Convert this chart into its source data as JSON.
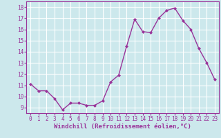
{
  "x": [
    0,
    1,
    2,
    3,
    4,
    5,
    6,
    7,
    8,
    9,
    10,
    11,
    12,
    13,
    14,
    15,
    16,
    17,
    18,
    19,
    20,
    21,
    22,
    23
  ],
  "y": [
    11.1,
    10.5,
    10.5,
    9.8,
    8.8,
    9.4,
    9.4,
    9.2,
    9.2,
    9.6,
    11.3,
    11.9,
    14.5,
    16.9,
    15.8,
    15.7,
    17.0,
    17.7,
    17.9,
    16.8,
    16.0,
    14.3,
    13.0,
    11.5
  ],
  "line_color": "#993399",
  "marker": "D",
  "marker_size": 2.0,
  "line_width": 1.0,
  "bg_color": "#cce8ec",
  "grid_color": "#ffffff",
  "xlabel": "Windchill (Refroidissement éolien,°C)",
  "xlabel_color": "#993399",
  "tick_color": "#993399",
  "ylim": [
    8.5,
    18.5
  ],
  "yticks": [
    9,
    10,
    11,
    12,
    13,
    14,
    15,
    16,
    17,
    18
  ],
  "xticks": [
    0,
    1,
    2,
    3,
    4,
    5,
    6,
    7,
    8,
    9,
    10,
    11,
    12,
    13,
    14,
    15,
    16,
    17,
    18,
    19,
    20,
    21,
    22,
    23
  ],
  "xtick_labels": [
    "0",
    "1",
    "2",
    "3",
    "4",
    "5",
    "6",
    "7",
    "8",
    "9",
    "10",
    "11",
    "12",
    "13",
    "14",
    "15",
    "16",
    "17",
    "18",
    "19",
    "20",
    "21",
    "22",
    "23"
  ],
  "spine_color": "#993399",
  "font_size_ticks": 5.5,
  "font_size_xlabel": 6.5
}
